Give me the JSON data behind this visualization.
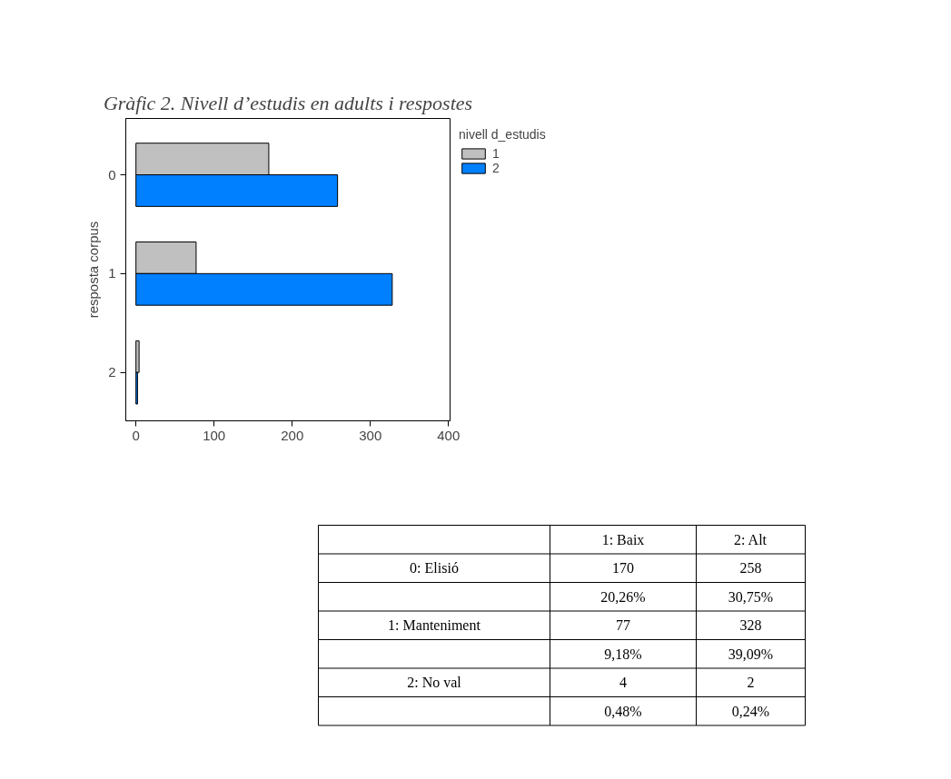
{
  "chart_data": {
    "type": "bar",
    "orientation": "horizontal",
    "title": "Gràfic 2. Nivell d’estudis en adults i respostes",
    "ylabel": "resposta corpus",
    "legend_title": "nivell d_estudis",
    "legend": "top right",
    "grid": false,
    "categories": [
      "0",
      "1",
      "2"
    ],
    "series": [
      {
        "name": "1",
        "color": "#c0c0c0",
        "values": [
          170,
          77,
          4
        ]
      },
      {
        "name": "2",
        "color": "#0080ff",
        "values": [
          258,
          328,
          2
        ]
      }
    ],
    "xlim": [
      -13,
      402
    ],
    "xticks": [
      0,
      100,
      200,
      300,
      400
    ],
    "annotations": [
      "1: Baix",
      "2: Alt",
      "0: Elisió",
      "1: Manteniment",
      "2: No val",
      "170",
      "258",
      "20,26%",
      "30,75%",
      "77",
      "328",
      "9,18%",
      "39,09%",
      "4",
      "2",
      "0,48%",
      "0,24%"
    ]
  }
}
